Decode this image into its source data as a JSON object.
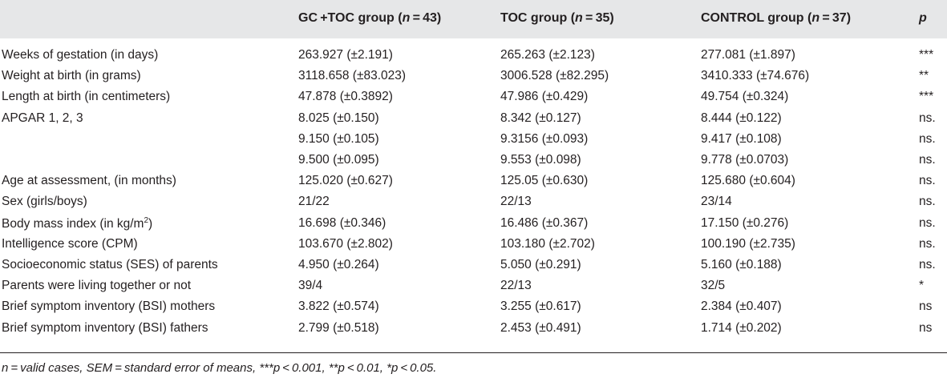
{
  "header": {
    "col0": "",
    "col1_label": "GC +TOC group (",
    "col1_n": "n",
    "col1_eq": " = 43)",
    "col2_label": "TOC group (",
    "col2_n": "n",
    "col2_eq": " = 35)",
    "col3_label": "CONTROL group (",
    "col3_n": "n",
    "col3_eq": " = 37)",
    "col4": "p"
  },
  "rows": [
    {
      "label": "Weeks of gestation (in days)",
      "gc_toc": "263.927 (±2.191)",
      "toc": "265.263 (±2.123)",
      "control": "277.081 (±1.897)",
      "p": "***"
    },
    {
      "label": "Weight at birth (in grams)",
      "gc_toc": "3118.658 (±83.023)",
      "toc": "3006.528 (±82.295)",
      "control": "3410.333 (±74.676)",
      "p": "**"
    },
    {
      "label": "Length at birth (in centimeters)",
      "gc_toc": "47.878 (±0.3892)",
      "toc": "47.986 (±0.429)",
      "control": "49.754 (±0.324)",
      "p": "***"
    },
    {
      "label": "APGAR 1, 2, 3",
      "gc_toc": "8.025 (±0.150)",
      "toc": "8.342 (±0.127)",
      "control": "8.444 (±0.122)",
      "p": "ns."
    },
    {
      "label": "",
      "gc_toc": "9.150 (±0.105)",
      "toc": "9.3156 (±0.093)",
      "control": "9.417 (±0.108)",
      "p": "ns."
    },
    {
      "label": "",
      "gc_toc": "9.500 (±0.095)",
      "toc": "9.553 (±0.098)",
      "control": "9.778 (±0.0703)",
      "p": "ns."
    },
    {
      "label": "Age at assessment, (in months)",
      "gc_toc": "125.020 (±0.627)",
      "toc": "125.05 (±0.630)",
      "control": "125.680 (±0.604)",
      "p": "ns."
    },
    {
      "label": "Sex (girls/boys)",
      "gc_toc": "21/22",
      "toc": "22/13",
      "control": "23/14",
      "p": "ns."
    },
    {
      "label": "Body mass index (in kg/m",
      "label_sup": "2",
      "label_tail": ")",
      "gc_toc": "16.698 (±0.346)",
      "toc": "16.486 (±0.367)",
      "control": "17.150 (±0.276)",
      "p": "ns."
    },
    {
      "label": "Intelligence score (CPM)",
      "gc_toc": "103.670 (±2.802)",
      "toc": "103.180 (±2.702)",
      "control": "100.190 (±2.735)",
      "p": "ns."
    },
    {
      "label": "Socioeconomic status (SES) of parents",
      "gc_toc": "4.950 (±0.264)",
      "toc": "5.050 (±0.291)",
      "control": "5.160 (±0.188)",
      "p": "ns."
    },
    {
      "label": "Parents were living together or not",
      "gc_toc": "39/4",
      "toc": "22/13",
      "control": "32/5",
      "p": "*"
    },
    {
      "label": "Brief symptom inventory (BSI) mothers",
      "gc_toc": "3.822 (±0.574)",
      "toc": "3.255 (±0.617)",
      "control": "2.384 (±0.407)",
      "p": "ns"
    },
    {
      "label": "Brief symptom inventory (BSI) fathers",
      "gc_toc": "2.799 (±0.518)",
      "toc": "2.453 (±0.491)",
      "control": "1.714 (±0.202)",
      "p": "ns"
    }
  ],
  "footnote": "n = valid cases, SEM = standard error of means, ***p < 0.001, **p < 0.01, *p < 0.05."
}
